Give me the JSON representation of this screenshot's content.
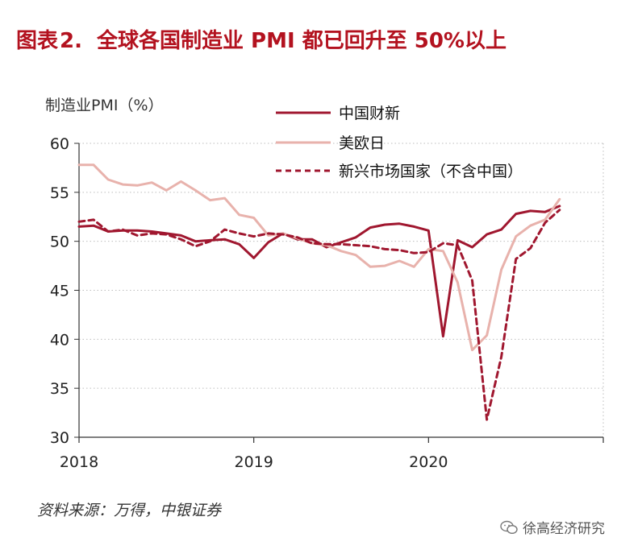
{
  "title": {
    "prefix": "图表",
    "number": "2.",
    "text": "全球各国制造业 PMI 都已回升至 50%以上"
  },
  "y_axis_label": "制造业PMI（%）",
  "source": "资料来源：万得，中银证券",
  "watermark": "徐高经济研究",
  "colors": {
    "china": "#a0172f",
    "developed": "#e8b2ac",
    "emerging": "#a0172f",
    "title": "#b3121f"
  },
  "chart_data": {
    "type": "line",
    "title": "全球各国制造业 PMI 都已回升至 50%以上",
    "ylabel": "制造业PMI（%）",
    "xlabel": "",
    "ylim": [
      30,
      60
    ],
    "yticks": [
      30,
      35,
      40,
      45,
      50,
      55,
      60
    ],
    "xticks": [
      "2018",
      "2019",
      "2020"
    ],
    "grid": true,
    "legend_position": "top-right",
    "x": [
      "2018-01",
      "2018-02",
      "2018-03",
      "2018-04",
      "2018-05",
      "2018-06",
      "2018-07",
      "2018-08",
      "2018-09",
      "2018-10",
      "2018-11",
      "2018-12",
      "2019-01",
      "2019-02",
      "2019-03",
      "2019-04",
      "2019-05",
      "2019-06",
      "2019-07",
      "2019-08",
      "2019-09",
      "2019-10",
      "2019-11",
      "2019-12",
      "2020-01",
      "2020-02",
      "2020-03",
      "2020-04",
      "2020-05",
      "2020-06",
      "2020-07",
      "2020-08",
      "2020-09",
      "2020-10"
    ],
    "series": [
      {
        "name": "中国财新",
        "style": "solid",
        "color": "#a0172f",
        "values": [
          51.5,
          51.6,
          51.0,
          51.1,
          51.1,
          51.0,
          50.8,
          50.6,
          50.0,
          50.1,
          50.2,
          49.7,
          48.3,
          49.9,
          50.8,
          50.2,
          50.2,
          49.4,
          49.9,
          50.4,
          51.4,
          51.7,
          51.8,
          51.5,
          51.1,
          40.3,
          50.1,
          49.4,
          50.7,
          51.2,
          52.8,
          53.1,
          53.0,
          53.6
        ]
      },
      {
        "name": "美欧日",
        "style": "solid",
        "color": "#e8b2ac",
        "values": [
          57.8,
          57.8,
          56.3,
          55.8,
          55.7,
          56.0,
          55.2,
          56.1,
          55.2,
          54.2,
          54.4,
          52.7,
          52.4,
          50.6,
          50.8,
          50.3,
          49.8,
          49.6,
          49.0,
          48.6,
          47.4,
          47.5,
          48.0,
          47.4,
          49.2,
          49.0,
          45.8,
          38.9,
          40.4,
          47.1,
          50.5,
          51.6,
          52.2,
          54.3
        ]
      },
      {
        "name": "新兴市场国家（不含中国）",
        "style": "dashed",
        "color": "#a0172f",
        "values": [
          52.0,
          52.2,
          51.0,
          51.2,
          50.6,
          50.8,
          50.7,
          50.2,
          49.5,
          50.0,
          51.2,
          50.8,
          50.5,
          50.8,
          50.7,
          50.4,
          49.8,
          49.7,
          49.7,
          49.6,
          49.5,
          49.2,
          49.1,
          48.8,
          48.9,
          49.8,
          49.6,
          46.0,
          31.8,
          38.2,
          48.2,
          49.3,
          51.9,
          53.2
        ]
      }
    ]
  }
}
